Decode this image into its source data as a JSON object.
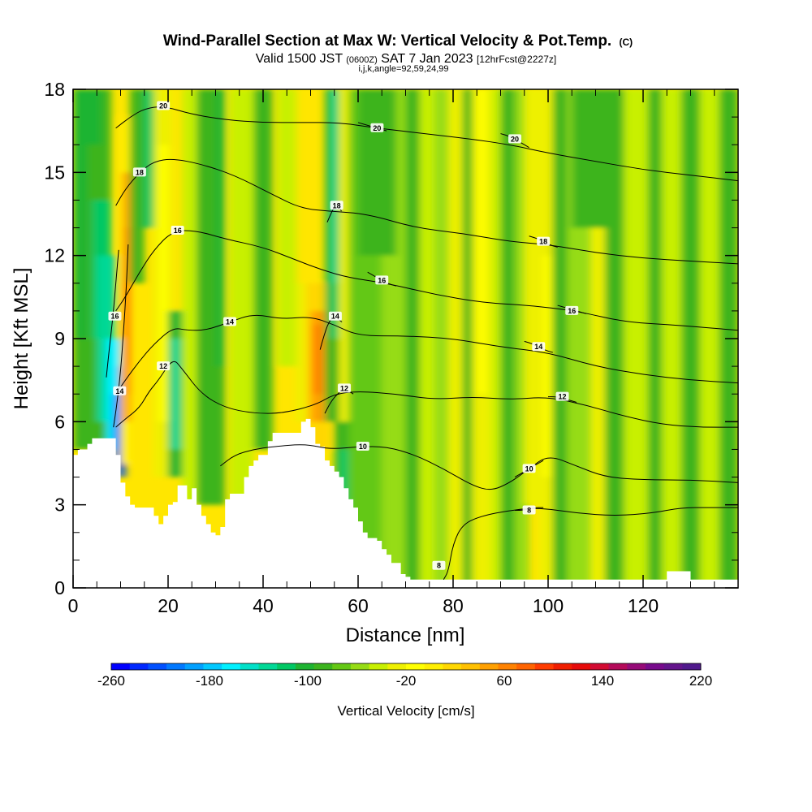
{
  "header": {
    "title_main": "Wind-Parallel Section at Max W: Vertical Velocity & Pot.Temp.",
    "title_mark": "(C)",
    "valid_a": "Valid 1500 JST",
    "valid_b": "(0600Z)",
    "valid_c": "SAT 7 Jan 2023",
    "valid_d": "[12hrFcst@2227z]",
    "subline": "i,j,k,angle=92,59,24,99"
  },
  "chart_data": {
    "type": "heatmap",
    "xlabel": "Distance [nm]",
    "ylabel": "Height [Kft MSL]",
    "xlim": [
      0,
      140
    ],
    "ylim": [
      0,
      18
    ],
    "x_ticks": [
      0,
      20,
      40,
      60,
      80,
      100,
      120
    ],
    "y_ticks": [
      0,
      3,
      6,
      9,
      12,
      15,
      18
    ],
    "colorbar": {
      "label": "Vertical Velocity [cm/s]",
      "range": [
        -260,
        220
      ],
      "step": 20,
      "tick_values": [
        -260,
        -180,
        -100,
        -20,
        60,
        140,
        220
      ],
      "colors": [
        "#0000ff",
        "#0028ff",
        "#0050ff",
        "#0078ff",
        "#00a0ff",
        "#00c8ff",
        "#00f0ff",
        "#00e0c8",
        "#00d896",
        "#00c864",
        "#1eb432",
        "#3cb41e",
        "#64c814",
        "#96dc14",
        "#c8f000",
        "#eef000",
        "#ffff00",
        "#ffee00",
        "#ffd700",
        "#ffc000",
        "#ffa000",
        "#ff8200",
        "#ff6400",
        "#ff3c00",
        "#f01e00",
        "#e60a0a",
        "#d20a32",
        "#b40a5a",
        "#960a78",
        "#780a8c",
        "#64148c",
        "#50198c"
      ]
    },
    "terrain_profile": [
      [
        0,
        4.8
      ],
      [
        1,
        5.0
      ],
      [
        3,
        5.2
      ],
      [
        4,
        5.4
      ],
      [
        8,
        5.4
      ],
      [
        9,
        4.8
      ],
      [
        10,
        3.8
      ],
      [
        11,
        3.3
      ],
      [
        12,
        3.0
      ],
      [
        13,
        2.9
      ],
      [
        15,
        2.9
      ],
      [
        17,
        2.6
      ],
      [
        18,
        2.3
      ],
      [
        19,
        2.6
      ],
      [
        20,
        3.0
      ],
      [
        21,
        3.1
      ],
      [
        22,
        3.7
      ],
      [
        24,
        3.2
      ],
      [
        25,
        3.6
      ],
      [
        26,
        3.0
      ],
      [
        27,
        2.6
      ],
      [
        28,
        2.3
      ],
      [
        29,
        2.0
      ],
      [
        30,
        1.9
      ],
      [
        31,
        2.2
      ],
      [
        32,
        3.2
      ],
      [
        33,
        3.4
      ],
      [
        35,
        3.4
      ],
      [
        36,
        4.0
      ],
      [
        37,
        4.4
      ],
      [
        38,
        4.6
      ],
      [
        39,
        4.8
      ],
      [
        41,
        5.3
      ],
      [
        42,
        5.6
      ],
      [
        47,
        5.6
      ],
      [
        48,
        6.0
      ],
      [
        49,
        6.1
      ],
      [
        50,
        5.8
      ],
      [
        51,
        5.2
      ],
      [
        52,
        5.1
      ],
      [
        53,
        4.6
      ],
      [
        54,
        4.4
      ],
      [
        55,
        4.2
      ],
      [
        56,
        4.0
      ],
      [
        57,
        3.6
      ],
      [
        58,
        3.2
      ],
      [
        59,
        2.9
      ],
      [
        60,
        2.4
      ],
      [
        61,
        2.0
      ],
      [
        62,
        1.8
      ],
      [
        64,
        1.7
      ],
      [
        65,
        1.4
      ],
      [
        66,
        1.2
      ],
      [
        67,
        0.9
      ],
      [
        69,
        0.5
      ],
      [
        70,
        0.4
      ],
      [
        71,
        0.3
      ],
      [
        124,
        0.3
      ],
      [
        125,
        0.6
      ],
      [
        129,
        0.6
      ],
      [
        130,
        0.3
      ],
      [
        140,
        0.3
      ]
    ],
    "theta_contours": [
      {
        "label": "8",
        "label_at": [
          77,
          0.8
        ],
        "points": [
          [
            78,
            0.3
          ],
          [
            79,
            0.6
          ],
          [
            80,
            1.6
          ],
          [
            82,
            2.3
          ],
          [
            86,
            2.6
          ],
          [
            92,
            2.8
          ],
          [
            98,
            2.9
          ],
          [
            106,
            2.7
          ],
          [
            114,
            2.6
          ],
          [
            122,
            2.7
          ],
          [
            128,
            2.9
          ],
          [
            134,
            2.9
          ],
          [
            140,
            2.9
          ]
        ]
      },
      {
        "label": "10",
        "label_at": [
          61,
          5.1
        ],
        "points": [
          [
            31,
            4.4
          ],
          [
            34,
            4.8
          ],
          [
            38,
            5.0
          ],
          [
            42,
            5.1
          ],
          [
            49,
            5.2
          ],
          [
            54,
            5.0
          ],
          [
            60,
            5.1
          ],
          [
            66,
            5.1
          ],
          [
            72,
            4.8
          ],
          [
            78,
            4.3
          ],
          [
            84,
            3.7
          ],
          [
            88,
            3.5
          ],
          [
            92,
            3.8
          ],
          [
            96,
            4.3
          ],
          [
            100,
            4.8
          ],
          [
            106,
            4.4
          ],
          [
            112,
            4.0
          ],
          [
            120,
            3.9
          ],
          [
            130,
            3.9
          ],
          [
            140,
            3.8
          ]
        ]
      },
      {
        "label": "12",
        "label_at": [
          19,
          8.0
        ],
        "points": [
          [
            9,
            5.8
          ],
          [
            11,
            6.1
          ],
          [
            14,
            6.5
          ],
          [
            16,
            7.1
          ],
          [
            18,
            7.5
          ],
          [
            21,
            8.3
          ],
          [
            23,
            7.9
          ],
          [
            27,
            7.0
          ],
          [
            32,
            6.5
          ],
          [
            38,
            6.3
          ],
          [
            44,
            6.3
          ],
          [
            51,
            6.6
          ],
          [
            55,
            7.0
          ],
          [
            60,
            7.1
          ],
          [
            68,
            7.0
          ],
          [
            76,
            6.8
          ],
          [
            84,
            6.9
          ],
          [
            92,
            6.8
          ],
          [
            100,
            6.9
          ],
          [
            108,
            6.6
          ],
          [
            116,
            6.2
          ],
          [
            124,
            5.9
          ],
          [
            132,
            5.8
          ],
          [
            140,
            5.8
          ]
        ]
      },
      {
        "label": "14",
        "label_at": [
          33,
          9.6
        ],
        "points": [
          [
            9,
            7.0
          ],
          [
            11,
            7.5
          ],
          [
            14,
            8.2
          ],
          [
            17,
            8.8
          ],
          [
            21,
            9.4
          ],
          [
            24,
            9.3
          ],
          [
            28,
            9.3
          ],
          [
            33,
            9.6
          ],
          [
            38,
            9.9
          ],
          [
            44,
            9.7
          ],
          [
            50,
            9.8
          ],
          [
            55,
            9.5
          ],
          [
            60,
            9.1
          ],
          [
            70,
            9.1
          ],
          [
            80,
            9.0
          ],
          [
            90,
            8.7
          ],
          [
            100,
            8.5
          ],
          [
            110,
            8.0
          ],
          [
            120,
            7.7
          ],
          [
            130,
            7.5
          ],
          [
            140,
            7.4
          ]
        ]
      },
      {
        "label": "16",
        "label_at": [
          22,
          12.9
        ],
        "points": [
          [
            9,
            10.0
          ],
          [
            11,
            10.5
          ],
          [
            14,
            11.4
          ],
          [
            17,
            12.2
          ],
          [
            21,
            12.9
          ],
          [
            26,
            12.9
          ],
          [
            32,
            12.6
          ],
          [
            40,
            12.3
          ],
          [
            46,
            11.9
          ],
          [
            52,
            11.5
          ],
          [
            58,
            11.2
          ],
          [
            66,
            11.0
          ],
          [
            76,
            10.6
          ],
          [
            86,
            10.3
          ],
          [
            96,
            10.2
          ],
          [
            106,
            10.0
          ],
          [
            116,
            9.6
          ],
          [
            126,
            9.5
          ],
          [
            140,
            9.3
          ]
        ]
      },
      {
        "label": "18",
        "label_at": [
          14,
          15.0
        ],
        "points": [
          [
            9,
            13.8
          ],
          [
            11,
            14.4
          ],
          [
            14,
            15.0
          ],
          [
            17,
            15.4
          ],
          [
            21,
            15.5
          ],
          [
            27,
            15.3
          ],
          [
            34,
            14.9
          ],
          [
            42,
            14.2
          ],
          [
            48,
            13.7
          ],
          [
            54,
            13.6
          ],
          [
            62,
            13.5
          ],
          [
            72,
            13.0
          ],
          [
            82,
            12.8
          ],
          [
            92,
            12.5
          ],
          [
            100,
            12.4
          ],
          [
            110,
            12.1
          ],
          [
            120,
            11.9
          ],
          [
            130,
            11.8
          ],
          [
            140,
            11.7
          ]
        ]
      },
      {
        "label": "20",
        "label_at": [
          19,
          17.4
        ],
        "points": [
          [
            9,
            16.6
          ],
          [
            12,
            17.0
          ],
          [
            15,
            17.3
          ],
          [
            19,
            17.4
          ],
          [
            25,
            17.1
          ],
          [
            32,
            16.9
          ],
          [
            40,
            16.8
          ],
          [
            48,
            16.8
          ],
          [
            56,
            16.8
          ],
          [
            64,
            16.6
          ],
          [
            74,
            16.4
          ],
          [
            84,
            16.2
          ],
          [
            92,
            16.0
          ],
          [
            100,
            15.7
          ],
          [
            110,
            15.4
          ],
          [
            120,
            15.1
          ],
          [
            130,
            14.9
          ],
          [
            140,
            14.7
          ]
        ]
      },
      {
        "label": "14",
        "label_at": [
          9.8,
          7.1
        ],
        "points": [
          [
            8.5,
            5.8
          ],
          [
            9.2,
            6.6
          ],
          [
            10.0,
            7.8
          ],
          [
            10.6,
            9.2
          ],
          [
            11.2,
            10.8
          ],
          [
            11.6,
            12.4
          ]
        ]
      },
      {
        "label": "16",
        "label_at": [
          8.8,
          9.8
        ],
        "points": [
          [
            7.0,
            7.6
          ],
          [
            7.6,
            8.6
          ],
          [
            8.4,
            9.8
          ],
          [
            9.0,
            11.0
          ],
          [
            9.6,
            12.2
          ]
        ]
      },
      {
        "label": "14",
        "label_at": [
          55.2,
          9.8
        ],
        "points": [
          [
            52.0,
            8.6
          ],
          [
            52.8,
            9.1
          ],
          [
            53.8,
            9.6
          ],
          [
            55.0,
            9.8
          ],
          [
            56.6,
            9.6
          ]
        ]
      },
      {
        "label": "12",
        "label_at": [
          57.1,
          7.2
        ],
        "points": [
          [
            53.0,
            6.3
          ],
          [
            54.2,
            6.7
          ],
          [
            55.6,
            7.0
          ],
          [
            57.2,
            7.2
          ],
          [
            59.0,
            7.0
          ]
        ]
      },
      {
        "label": "18",
        "label_at": [
          55.5,
          13.8
        ],
        "points": [
          [
            53.5,
            13.2
          ],
          [
            54.5,
            13.6
          ],
          [
            55.5,
            13.9
          ],
          [
            56.5,
            13.6
          ]
        ]
      },
      {
        "label": "16",
        "label_at": [
          65.0,
          11.1
        ],
        "points": [
          [
            62.0,
            11.4
          ],
          [
            64.0,
            11.2
          ],
          [
            66.0,
            11.0
          ],
          [
            68.0,
            10.9
          ]
        ]
      },
      {
        "label": "20",
        "label_at": [
          64.0,
          16.6
        ],
        "points": [
          [
            60.0,
            16.8
          ],
          [
            62.0,
            16.7
          ],
          [
            64.0,
            16.6
          ],
          [
            66.0,
            16.5
          ]
        ]
      },
      {
        "label": "20",
        "label_at": [
          93.0,
          16.2
        ],
        "points": [
          [
            90.0,
            16.4
          ],
          [
            92.0,
            16.3
          ],
          [
            94.0,
            16.1
          ],
          [
            96.0,
            15.9
          ]
        ]
      },
      {
        "label": "18",
        "label_at": [
          99.0,
          12.5
        ],
        "points": [
          [
            96.0,
            12.7
          ],
          [
            98.0,
            12.6
          ],
          [
            100.0,
            12.4
          ],
          [
            102.0,
            12.3
          ]
        ]
      },
      {
        "label": "16",
        "label_at": [
          105.0,
          10.0
        ],
        "points": [
          [
            102.0,
            10.2
          ],
          [
            104.0,
            10.1
          ],
          [
            106.0,
            10.0
          ],
          [
            108.0,
            9.9
          ]
        ]
      },
      {
        "label": "14",
        "label_at": [
          98.0,
          8.7
        ],
        "points": [
          [
            95.0,
            8.9
          ],
          [
            97.0,
            8.8
          ],
          [
            99.0,
            8.6
          ],
          [
            101.0,
            8.5
          ]
        ]
      },
      {
        "label": "12",
        "label_at": [
          103.0,
          6.9
        ],
        "points": [
          [
            100.0,
            6.9
          ],
          [
            102.0,
            6.9
          ],
          [
            104.0,
            6.8
          ],
          [
            106.0,
            6.7
          ]
        ]
      },
      {
        "label": "10",
        "label_at": [
          96.0,
          4.3
        ],
        "points": [
          [
            93.0,
            4.0
          ],
          [
            95.0,
            4.2
          ],
          [
            97.0,
            4.4
          ],
          [
            99.0,
            4.6
          ]
        ]
      },
      {
        "label": "8",
        "label_at": [
          96.0,
          2.8
        ],
        "points": [
          [
            93.0,
            2.8
          ],
          [
            95.0,
            2.8
          ],
          [
            97.0,
            2.9
          ],
          [
            99.0,
            2.9
          ]
        ]
      }
    ]
  }
}
